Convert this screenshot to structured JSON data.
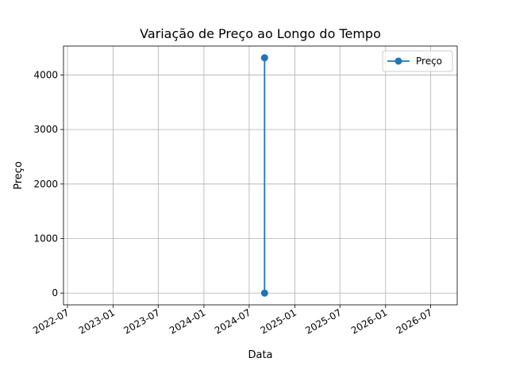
{
  "chart_data": {
    "type": "line",
    "title": "Variação de Preço ao Longo do Tempo",
    "xlabel": "Data",
    "ylabel": "Preço",
    "x_ticks": [
      "2022-07",
      "2023-01",
      "2023-07",
      "2024-01",
      "2024-07",
      "2025-01",
      "2025-07",
      "2026-01",
      "2026-07"
    ],
    "y_ticks": [
      0,
      1000,
      2000,
      3000,
      4000
    ],
    "xlim": [
      "2022-06-15",
      "2026-10-16"
    ],
    "ylim": [
      -215,
      4530
    ],
    "grid": true,
    "legend_position": "top-right",
    "series": [
      {
        "name": "Preço",
        "color": "#1f77b4",
        "marker": "circle",
        "x": [
          "2024-09-01",
          "2024-09-01"
        ],
        "y": [
          0,
          4315
        ]
      }
    ]
  }
}
